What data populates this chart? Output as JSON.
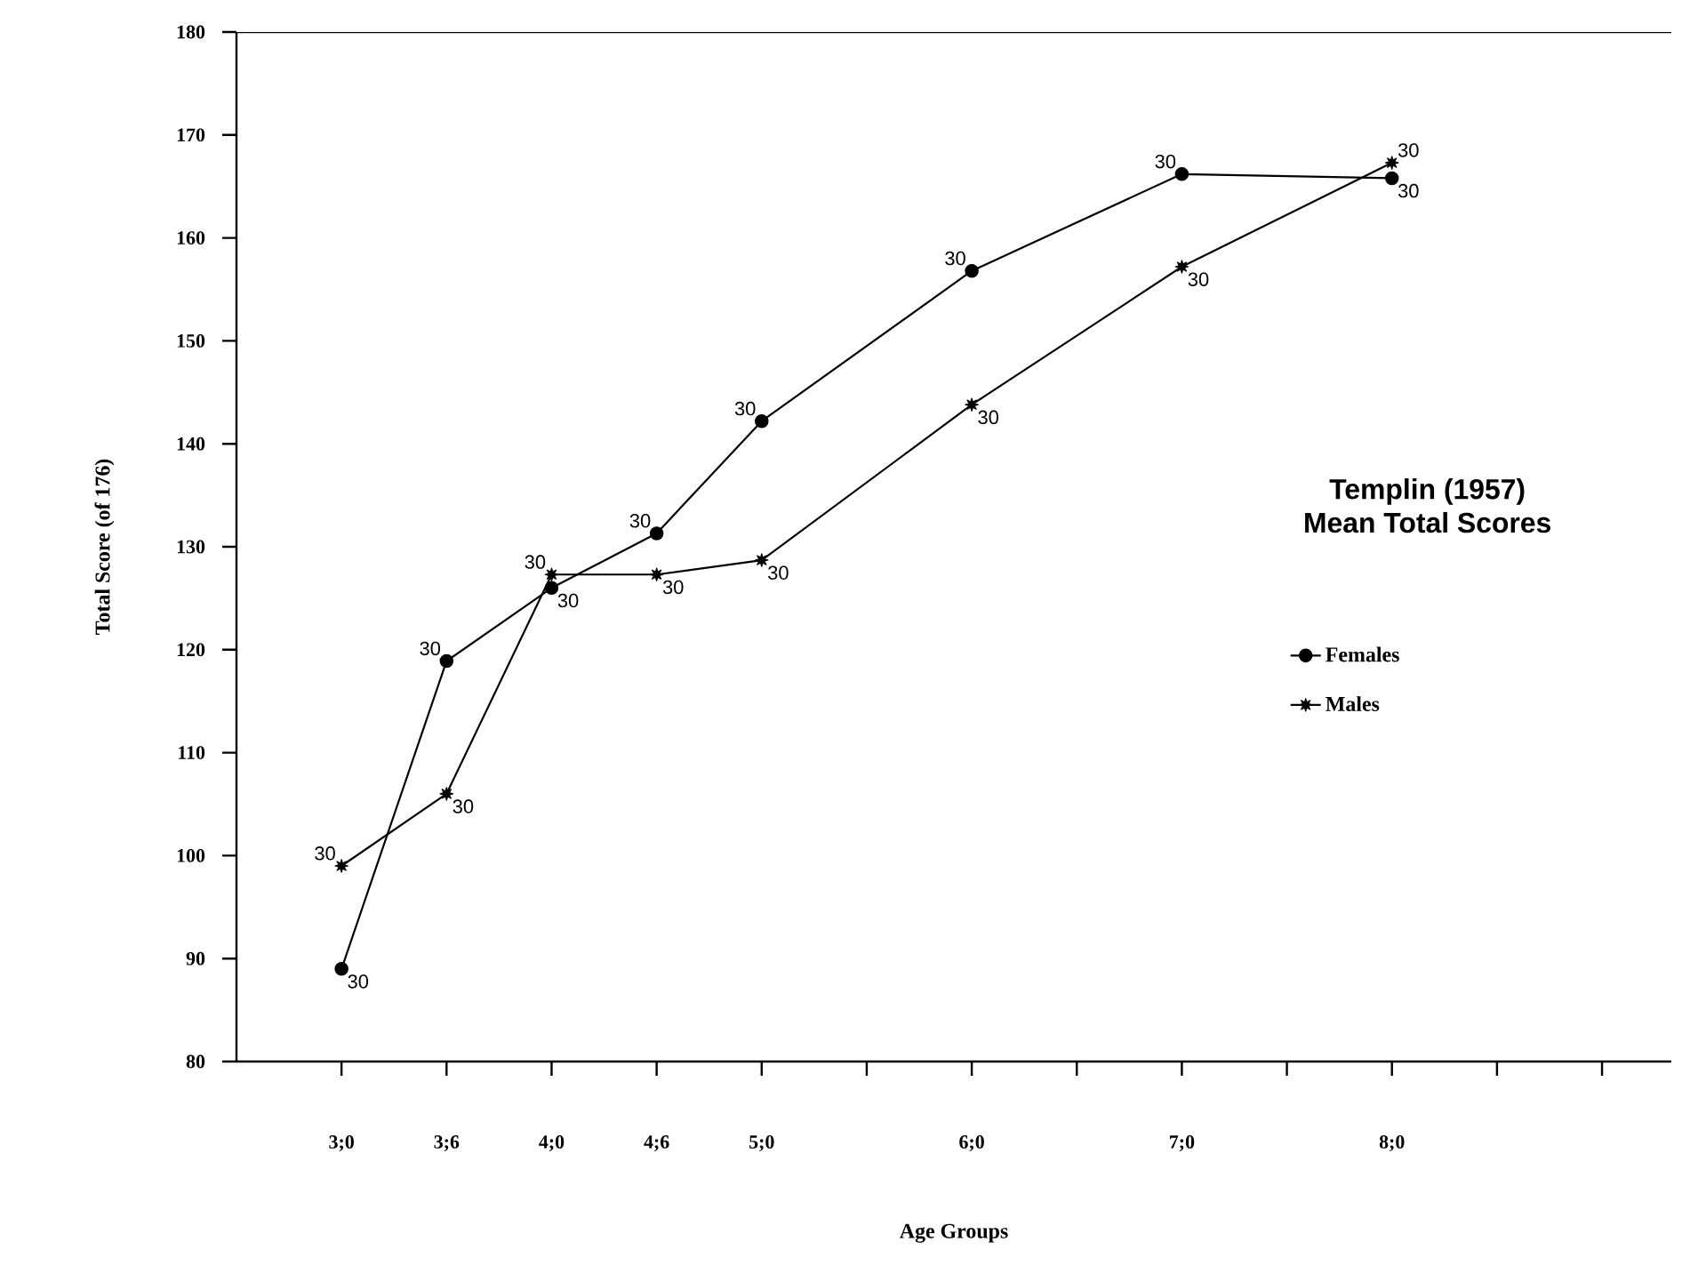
{
  "chart_data": {
    "type": "line",
    "title": "Templin (1957)",
    "subtitle": "Mean Total Scores",
    "xlabel": "Age Groups",
    "ylabel": "Total Score (of 176)",
    "categories": [
      "3;0",
      "3;6",
      "4;0",
      "4;6",
      "5;0",
      null,
      "6;0",
      null,
      "7;0",
      null,
      "8;0",
      null,
      null
    ],
    "series": [
      {
        "name": "Females",
        "color": "#000000",
        "marker": "circle",
        "values": [
          89,
          118.9,
          126,
          131.3,
          142.2,
          null,
          156.8,
          null,
          166.2,
          null,
          165.8,
          null,
          null
        ]
      },
      {
        "name": "Males",
        "color": "#000000",
        "marker": "star",
        "values": [
          99,
          106,
          127.3,
          127.3,
          128.7,
          null,
          143.8,
          null,
          157.2,
          null,
          167.3,
          null,
          null
        ]
      }
    ],
    "annotations": [
      {
        "text": "30",
        "x": "3;0",
        "y": 89
      },
      {
        "text": "30",
        "x": "3;6",
        "y": 118.9
      },
      {
        "text": "30",
        "x": "4;0",
        "y": 126
      },
      {
        "text": "30",
        "x": "4;6",
        "y": 131.3
      },
      {
        "text": "30",
        "x": "5;0",
        "y": 142.2
      },
      {
        "text": "30",
        "x": "6;0",
        "y": 156.8
      },
      {
        "text": "30",
        "x": "7;0",
        "y": 166.2
      },
      {
        "text": "30",
        "x": "8;0",
        "y": 165.8
      },
      {
        "text": "30",
        "x": "3;0",
        "y": 99
      },
      {
        "text": "30",
        "x": "3;6",
        "y": 106
      },
      {
        "text": "30",
        "x": "4;0",
        "y": 127.3
      },
      {
        "text": "30",
        "x": "4;6",
        "y": 127.3
      },
      {
        "text": "30",
        "x": "5;0",
        "y": 128.7
      },
      {
        "text": "30",
        "x": "6;0",
        "y": 143.8
      },
      {
        "text": "30",
        "x": "7;0",
        "y": 157.2
      },
      {
        "text": "30",
        "x": "8;0",
        "y": 167.3
      }
    ],
    "ylim": [
      80,
      180
    ],
    "yticks": [
      80,
      90,
      100,
      110,
      120,
      130,
      140,
      150,
      160,
      170,
      180
    ],
    "grid": false,
    "legend": "right",
    "line_style": "solid"
  }
}
